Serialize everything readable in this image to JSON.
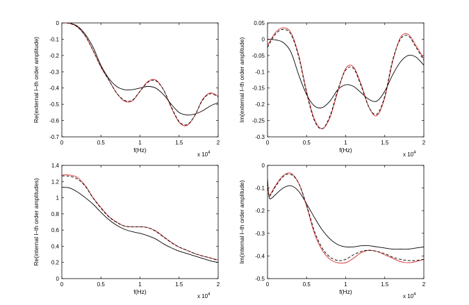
{
  "chart_data": [
    {
      "type": "line",
      "xlabel": "f(Hz)",
      "ylabel": "Re(external l–th order amplitude)",
      "x_multiplier": "x 10",
      "x_multiplier_exp": "4",
      "xlim": [
        0,
        2
      ],
      "ylim": [
        -0.7,
        0
      ],
      "xticks": [
        "0",
        "0.5",
        "1",
        "1.5",
        "2"
      ],
      "yticks": [
        "0",
        "-0.1",
        "-0.2",
        "-0.3",
        "-0.4",
        "-0.5",
        "-0.6",
        "-0.7"
      ],
      "x": [
        0,
        0.1,
        0.2,
        0.3,
        0.4,
        0.5,
        0.6,
        0.7,
        0.8,
        0.9,
        1.0,
        1.1,
        1.2,
        1.3,
        1.4,
        1.5,
        1.6,
        1.7,
        1.8,
        1.9,
        2.0
      ],
      "series": [
        {
          "color": "#000000",
          "dash": "solid",
          "values": [
            0,
            -0.002,
            -0.02,
            -0.07,
            -0.15,
            -0.26,
            -0.34,
            -0.39,
            -0.41,
            -0.41,
            -0.4,
            -0.39,
            -0.4,
            -0.44,
            -0.5,
            -0.55,
            -0.565,
            -0.56,
            -0.54,
            -0.51,
            -0.49
          ]
        },
        {
          "color": "#d62728",
          "dash": "solid",
          "values": [
            0,
            -0.003,
            -0.025,
            -0.08,
            -0.17,
            -0.27,
            -0.35,
            -0.43,
            -0.48,
            -0.48,
            -0.42,
            -0.36,
            -0.35,
            -0.41,
            -0.52,
            -0.61,
            -0.63,
            -0.57,
            -0.47,
            -0.43,
            -0.45
          ]
        },
        {
          "color": "#000000",
          "dash": "dashed",
          "values": [
            0,
            -0.003,
            -0.025,
            -0.08,
            -0.17,
            -0.27,
            -0.35,
            -0.43,
            -0.475,
            -0.475,
            -0.42,
            -0.365,
            -0.355,
            -0.41,
            -0.515,
            -0.605,
            -0.625,
            -0.57,
            -0.475,
            -0.435,
            -0.455
          ]
        }
      ]
    },
    {
      "type": "line",
      "xlabel": "f(Hz)",
      "ylabel": "Im(external l–th order amplitude)",
      "x_multiplier": "x 10",
      "x_multiplier_exp": "4",
      "xlim": [
        0,
        2
      ],
      "ylim": [
        -0.3,
        0.05
      ],
      "xticks": [
        "0",
        "0.5",
        "1",
        "1.5",
        "2"
      ],
      "yticks": [
        "0.05",
        "0",
        "-0.05",
        "-0.1",
        "-0.15",
        "-0.2",
        "-0.25",
        "-0.3"
      ],
      "x": [
        0,
        0.1,
        0.2,
        0.3,
        0.4,
        0.5,
        0.6,
        0.7,
        0.8,
        0.9,
        1.0,
        1.1,
        1.2,
        1.3,
        1.4,
        1.5,
        1.6,
        1.7,
        1.8,
        1.9,
        2.0
      ],
      "series": [
        {
          "color": "#000000",
          "dash": "solid",
          "values": [
            0,
            -0.002,
            -0.01,
            -0.04,
            -0.11,
            -0.17,
            -0.205,
            -0.21,
            -0.19,
            -0.155,
            -0.14,
            -0.145,
            -0.165,
            -0.185,
            -0.19,
            -0.16,
            -0.11,
            -0.07,
            -0.05,
            -0.055,
            -0.08
          ]
        },
        {
          "color": "#d62728",
          "dash": "solid",
          "values": [
            -0.02,
            0.02,
            0.035,
            0.02,
            -0.05,
            -0.16,
            -0.245,
            -0.275,
            -0.24,
            -0.16,
            -0.09,
            -0.085,
            -0.14,
            -0.21,
            -0.235,
            -0.18,
            -0.07,
            0.005,
            0.015,
            -0.02,
            -0.06
          ]
        },
        {
          "color": "#000000",
          "dash": "dashed",
          "values": [
            -0.025,
            0.015,
            0.03,
            0.015,
            -0.055,
            -0.165,
            -0.25,
            -0.275,
            -0.235,
            -0.155,
            -0.095,
            -0.09,
            -0.145,
            -0.21,
            -0.23,
            -0.175,
            -0.065,
            0.0,
            0.01,
            -0.025,
            -0.065
          ]
        }
      ]
    },
    {
      "type": "line",
      "xlabel": "f(Hz)",
      "ylabel": "Re(internal l–th order amplitudes)",
      "x_multiplier": "x 10",
      "x_multiplier_exp": "4",
      "xlim": [
        0,
        2
      ],
      "ylim": [
        0,
        1.4
      ],
      "xticks": [
        "0",
        "0.5",
        "1",
        "1.5",
        "2"
      ],
      "yticks": [
        "1.4",
        "1.2",
        "1",
        "0.8",
        "0.6",
        "0.4",
        "0.2",
        "0"
      ],
      "x": [
        0,
        0.1,
        0.2,
        0.3,
        0.4,
        0.5,
        0.6,
        0.7,
        0.8,
        0.9,
        1.0,
        1.1,
        1.2,
        1.3,
        1.4,
        1.5,
        1.6,
        1.7,
        1.8,
        1.9,
        2.0
      ],
      "series": [
        {
          "color": "#000000",
          "dash": "solid",
          "values": [
            1.13,
            1.12,
            1.07,
            1.0,
            0.92,
            0.82,
            0.73,
            0.66,
            0.61,
            0.58,
            0.56,
            0.53,
            0.49,
            0.43,
            0.38,
            0.34,
            0.31,
            0.28,
            0.25,
            0.22,
            0.2
          ]
        },
        {
          "color": "#d62728",
          "dash": "solid",
          "values": [
            1.28,
            1.28,
            1.25,
            1.15,
            1.0,
            0.88,
            0.77,
            0.7,
            0.65,
            0.64,
            0.64,
            0.63,
            0.59,
            0.52,
            0.45,
            0.39,
            0.35,
            0.31,
            0.28,
            0.255,
            0.23
          ]
        },
        {
          "color": "#000000",
          "dash": "dashed",
          "values": [
            1.27,
            1.265,
            1.23,
            1.14,
            0.995,
            0.87,
            0.765,
            0.695,
            0.65,
            0.64,
            0.64,
            0.63,
            0.585,
            0.515,
            0.445,
            0.39,
            0.35,
            0.31,
            0.28,
            0.255,
            0.225
          ]
        }
      ]
    },
    {
      "type": "line",
      "xlabel": "f(Hz)",
      "ylabel": "Im(internal l–th order amplitude)",
      "x_multiplier": "x 10",
      "x_multiplier_exp": "4",
      "xlim": [
        0,
        2
      ],
      "ylim": [
        -0.5,
        0
      ],
      "xticks": [
        "0",
        "0.5",
        "1",
        "1.5",
        "2"
      ],
      "yticks": [
        "0",
        "-0.1",
        "-0.2",
        "-0.3",
        "-0.4",
        "-0.5"
      ],
      "x": [
        0,
        0.02,
        0.05,
        0.1,
        0.2,
        0.3,
        0.4,
        0.5,
        0.6,
        0.7,
        0.8,
        0.9,
        1.0,
        1.1,
        1.2,
        1.3,
        1.4,
        1.5,
        1.6,
        1.7,
        1.8,
        1.9,
        2.0
      ],
      "series": [
        {
          "color": "#000000",
          "dash": "solid",
          "values": [
            -0.06,
            -0.14,
            -0.145,
            -0.13,
            -0.1,
            -0.09,
            -0.115,
            -0.17,
            -0.23,
            -0.285,
            -0.325,
            -0.35,
            -0.36,
            -0.36,
            -0.355,
            -0.355,
            -0.36,
            -0.365,
            -0.37,
            -0.37,
            -0.37,
            -0.365,
            -0.36
          ]
        },
        {
          "color": "#d62728",
          "dash": "solid",
          "values": [
            -0.08,
            -0.13,
            -0.12,
            -0.09,
            -0.045,
            -0.035,
            -0.08,
            -0.18,
            -0.3,
            -0.375,
            -0.415,
            -0.43,
            -0.43,
            -0.41,
            -0.385,
            -0.375,
            -0.38,
            -0.395,
            -0.41,
            -0.425,
            -0.43,
            -0.425,
            -0.415
          ]
        },
        {
          "color": "#000000",
          "dash": "dashed",
          "values": [
            -0.08,
            -0.135,
            -0.125,
            -0.095,
            -0.05,
            -0.04,
            -0.08,
            -0.175,
            -0.29,
            -0.365,
            -0.405,
            -0.42,
            -0.415,
            -0.395,
            -0.38,
            -0.375,
            -0.38,
            -0.39,
            -0.405,
            -0.415,
            -0.42,
            -0.42,
            -0.415
          ]
        }
      ]
    }
  ]
}
